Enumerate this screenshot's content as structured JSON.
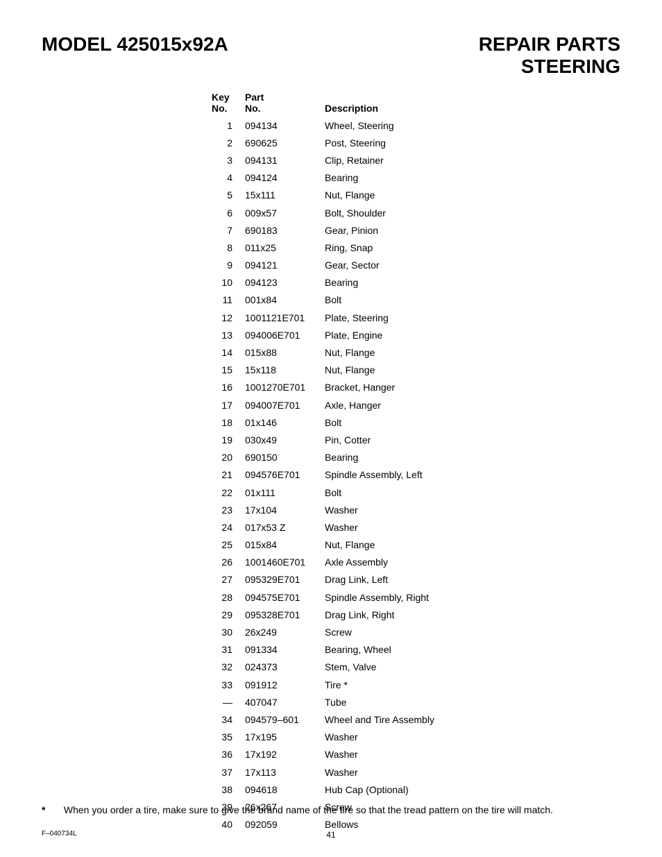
{
  "header": {
    "model_label": "MODEL 425015x92A",
    "title_top": "REPAIR PARTS",
    "title_bottom": "STEERING"
  },
  "columns": {
    "key_top": "Key",
    "key_bottom": "No.",
    "part_top": "Part",
    "part_bottom": "No.",
    "desc": "Description"
  },
  "rows": [
    {
      "key": "1",
      "part": "094134",
      "desc": "Wheel, Steering"
    },
    {
      "key": "2",
      "part": "690625",
      "desc": "Post, Steering"
    },
    {
      "key": "3",
      "part": "094131",
      "desc": "Clip, Retainer"
    },
    {
      "key": "4",
      "part": "094124",
      "desc": "Bearing"
    },
    {
      "key": "5",
      "part": "15x111",
      "desc": "Nut, Flange"
    },
    {
      "key": "6",
      "part": "009x57",
      "desc": "Bolt, Shoulder"
    },
    {
      "key": "7",
      "part": "690183",
      "desc": "Gear, Pinion"
    },
    {
      "key": "8",
      "part": "011x25",
      "desc": "Ring, Snap"
    },
    {
      "key": "9",
      "part": "094121",
      "desc": "Gear, Sector"
    },
    {
      "key": "10",
      "part": "094123",
      "desc": "Bearing"
    },
    {
      "key": "11",
      "part": "001x84",
      "desc": "Bolt"
    },
    {
      "key": "12",
      "part": "1001121E701",
      "desc": "Plate, Steering"
    },
    {
      "key": "13",
      "part": "094006E701",
      "desc": "Plate, Engine"
    },
    {
      "key": "14",
      "part": "015x88",
      "desc": "Nut, Flange"
    },
    {
      "key": "15",
      "part": "15x118",
      "desc": "Nut, Flange"
    },
    {
      "key": "16",
      "part": "1001270E701",
      "desc": "Bracket, Hanger"
    },
    {
      "key": "17",
      "part": "094007E701",
      "desc": "Axle, Hanger"
    },
    {
      "key": "18",
      "part": "01x146",
      "desc": "Bolt"
    },
    {
      "key": "19",
      "part": "030x49",
      "desc": "Pin, Cotter"
    },
    {
      "key": "20",
      "part": "690150",
      "desc": "Bearing"
    },
    {
      "key": "21",
      "part": "094576E701",
      "desc": "Spindle Assembly, Left"
    },
    {
      "key": "22",
      "part": "01x111",
      "desc": "Bolt"
    },
    {
      "key": "23",
      "part": "17x104",
      "desc": "Washer"
    },
    {
      "key": "24",
      "part": "017x53  Z",
      "desc": "Washer"
    },
    {
      "key": "25",
      "part": "015x84",
      "desc": "Nut, Flange"
    },
    {
      "key": "26",
      "part": "1001460E701",
      "desc": "Axle Assembly"
    },
    {
      "key": "27",
      "part": "095329E701",
      "desc": "Drag Link, Left"
    },
    {
      "key": "28",
      "part": "094575E701",
      "desc": "Spindle Assembly, Right"
    },
    {
      "key": "29",
      "part": "095328E701",
      "desc": "Drag Link, Right"
    },
    {
      "key": "30",
      "part": "26x249",
      "desc": "Screw"
    },
    {
      "key": "31",
      "part": "091334",
      "desc": "Bearing, Wheel"
    },
    {
      "key": "32",
      "part": "024373",
      "desc": "Stem, Valve"
    },
    {
      "key": "33",
      "part": "091912",
      "desc": "Tire *"
    },
    {
      "key": "—",
      "part": "407047",
      "desc": "Tube"
    },
    {
      "key": "34",
      "part": "094579–601",
      "desc": "Wheel and Tire Assembly"
    },
    {
      "key": "35",
      "part": "17x195",
      "desc": "Washer"
    },
    {
      "key": "36",
      "part": "17x192",
      "desc": "Washer"
    },
    {
      "key": "37",
      "part": "17x113",
      "desc": "Washer"
    },
    {
      "key": "38",
      "part": "094618",
      "desc": "Hub Cap (Optional)"
    },
    {
      "key": "39",
      "part": "26x267",
      "desc": "Screw"
    },
    {
      "key": "40",
      "part": "092059",
      "desc": "Bellows"
    }
  ],
  "footnote": {
    "marker": "*",
    "text": "When you order a tire, make sure to give the brand name of the tire so that the tread pattern on the tire will match."
  },
  "footer": {
    "doc_code": "F–040734L",
    "page_number": "41"
  }
}
